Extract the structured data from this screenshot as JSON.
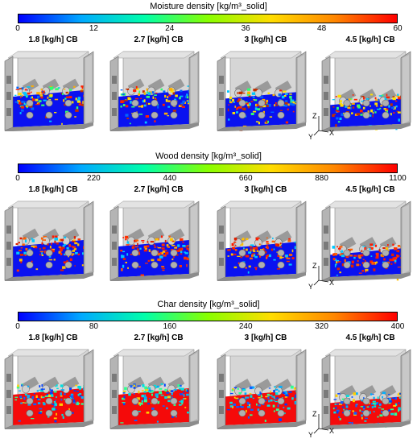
{
  "colors": {
    "colormap": [
      "#0000ff",
      "#00aaff",
      "#00ffaa",
      "#88ff00",
      "#ffdd00",
      "#ff8800",
      "#ff0000"
    ],
    "frame_gray": "#b4b4b4",
    "frame_dark": "#7a7a7a",
    "back_wall": "#d6d6d6"
  },
  "sections": [
    {
      "title": "Moisture density [kg/m³_solid]",
      "ticks": [
        "0",
        "12",
        "24",
        "36",
        "48",
        "60"
      ],
      "dominant_fill": "#0a12f0",
      "particle_palette": [
        "#ff2000",
        "#ffae00",
        "#2fff70",
        "#00c8ff",
        "#ffe000",
        "#c03000",
        "#0066ff"
      ],
      "panels": [
        {
          "label": "1.8 [kg/h] CB",
          "bed_level": 0.45
        },
        {
          "label": "2.7 [kg/h] CB",
          "bed_level": 0.45
        },
        {
          "label": "3 [kg/h] CB",
          "bed_level": 0.42
        },
        {
          "label": "4.5 [kg/h] CB",
          "bed_level": 0.32
        }
      ]
    },
    {
      "title": "Wood density [kg/m³_solid]",
      "ticks": [
        "0",
        "220",
        "440",
        "660",
        "880",
        "1100"
      ],
      "dominant_fill": "#0a12f0",
      "particle_palette": [
        "#ff1a00",
        "#ff6000",
        "#ffc000",
        "#ff3000",
        "#00c8ff",
        "#e02000"
      ],
      "panels": [
        {
          "label": "1.8 [kg/h] CB",
          "bed_level": 0.45
        },
        {
          "label": "2.7 [kg/h] CB",
          "bed_level": 0.45
        },
        {
          "label": "3 [kg/h] CB",
          "bed_level": 0.42
        },
        {
          "label": "4.5 [kg/h] CB",
          "bed_level": 0.32
        }
      ]
    },
    {
      "title": "Char density [kg/m³_solid]",
      "ticks": [
        "0",
        "80",
        "160",
        "240",
        "320",
        "400"
      ],
      "dominant_fill": "#f50a0a",
      "particle_palette": [
        "#0040ff",
        "#00b0ff",
        "#30ff90",
        "#ffd000",
        "#1060ff",
        "#00e0e0"
      ],
      "panels": [
        {
          "label": "1.8 [kg/h] CB",
          "bed_level": 0.45
        },
        {
          "label": "2.7 [kg/h] CB",
          "bed_level": 0.45
        },
        {
          "label": "3 [kg/h] CB",
          "bed_level": 0.42
        },
        {
          "label": "4.5 [kg/h] CB",
          "bed_level": 0.32
        }
      ]
    }
  ],
  "axes_labels": {
    "z": "Z",
    "x": "X",
    "y": "Y"
  }
}
